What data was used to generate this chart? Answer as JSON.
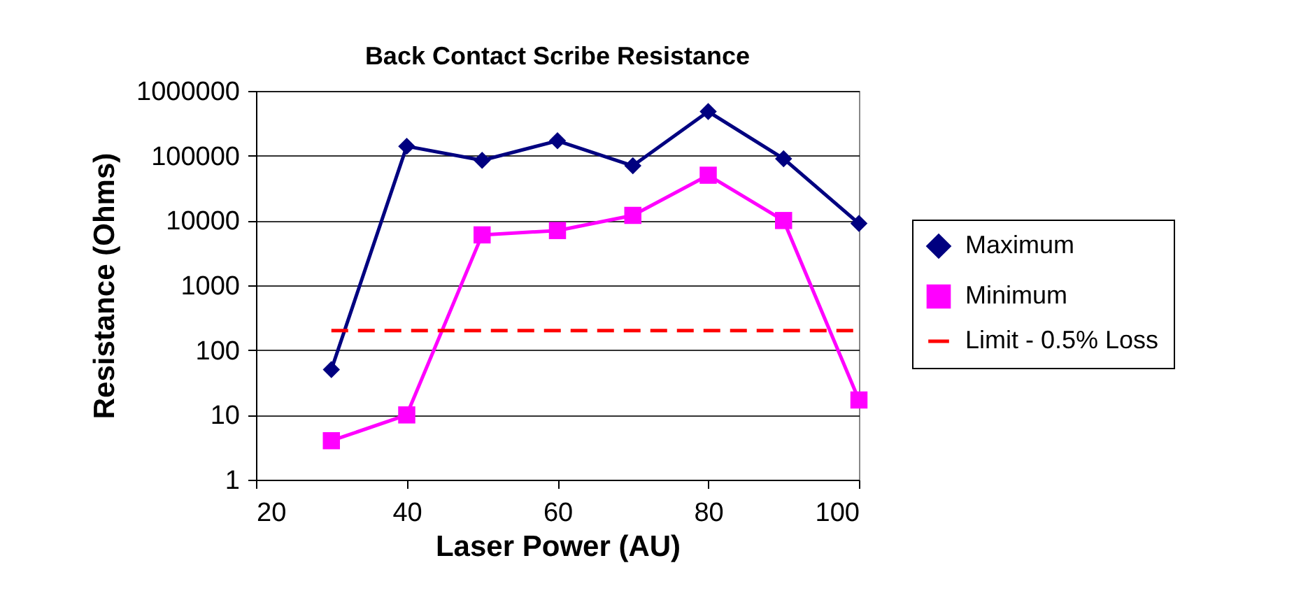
{
  "chart_data": {
    "type": "line",
    "title": "Back Contact Scribe Resistance",
    "xlabel": "Laser Power (AU)",
    "ylabel": "Resistance (Ohms)",
    "x": [
      30,
      40,
      50,
      60,
      70,
      80,
      90,
      100
    ],
    "series": [
      {
        "name": "Maximum",
        "color": "#000080",
        "marker": "diamond",
        "line_style": "solid",
        "values": [
          50,
          140000,
          85000,
          170000,
          70000,
          480000,
          90000,
          9000
        ]
      },
      {
        "name": "Minimum",
        "color": "#ff00ff",
        "marker": "square",
        "line_style": "solid",
        "values": [
          4,
          10,
          6000,
          7000,
          12000,
          50000,
          10000,
          17
        ]
      },
      {
        "name": "Limit - 0.5% Loss",
        "color": "#ff0000",
        "marker": "none",
        "line_style": "dashed",
        "x": [
          30,
          100
        ],
        "values": [
          200,
          200
        ]
      }
    ],
    "log": "y",
    "xlim": [
      20,
      100
    ],
    "xticks": [
      20,
      40,
      60,
      80,
      100
    ],
    "ylim": [
      1,
      1000000
    ],
    "yticks": [
      1,
      10,
      100,
      1000,
      10000,
      100000,
      1000000
    ],
    "grid": "y",
    "legend": "right"
  }
}
